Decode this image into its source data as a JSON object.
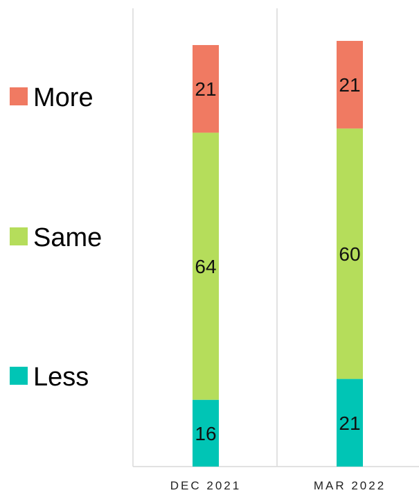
{
  "chart_data": {
    "type": "bar",
    "stacked": true,
    "categories": [
      "DEC 2021",
      "MAR 2022"
    ],
    "series": [
      {
        "name": "Less",
        "values": [
          16,
          21
        ],
        "color": "#00C5B5"
      },
      {
        "name": "Same",
        "values": [
          64,
          60
        ],
        "color": "#B5DD5B"
      },
      {
        "name": "More",
        "values": [
          21,
          21
        ],
        "color": "#F07A62"
      }
    ],
    "legend": {
      "position": "left",
      "order": [
        "More",
        "Same",
        "Less"
      ]
    },
    "data_labels": true,
    "ylim": [
      0,
      101
    ],
    "grid": "vertical separators between categories",
    "y_axis_visible": false
  }
}
